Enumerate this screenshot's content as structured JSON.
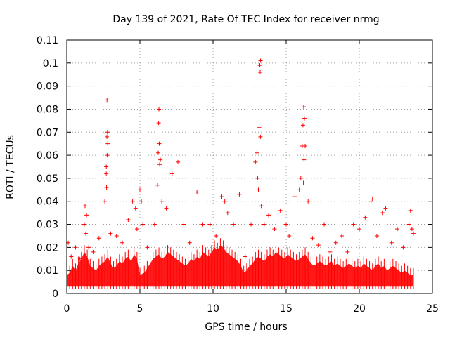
{
  "chart_data": {
    "type": "scatter",
    "title": "Day 139 of 2021, Rate Of TEC Index for receiver nrmg",
    "xlabel": "GPS time / hours",
    "ylabel": "ROTI / TECUs",
    "xlim": [
      0,
      25
    ],
    "ylim": [
      0,
      0.11
    ],
    "x_ticks": [
      0,
      5,
      10,
      15,
      20,
      25
    ],
    "x_tick_labels": [
      "0",
      "5",
      "10",
      "15",
      "20",
      "25"
    ],
    "y_ticks": [
      0,
      0.01,
      0.02,
      0.03,
      0.04,
      0.05,
      0.06,
      0.07,
      0.08,
      0.09,
      0.1,
      0.11
    ],
    "y_tick_labels": [
      "0",
      "0.01",
      "0.02",
      "0.03",
      "0.04",
      "0.05",
      "0.06",
      "0.07",
      "0.08",
      "0.09",
      "0.1",
      "0.11"
    ],
    "grid": true,
    "legend": "none",
    "marker": "plus",
    "color": "#ff0000",
    "series": [
      {
        "x": [
          0.1,
          0.3,
          0.6,
          0.9,
          1.2,
          1.25,
          1.3,
          1.35,
          1.5,
          1.8,
          2.2,
          2.6,
          2.7,
          2.75,
          2.78,
          2.8,
          2.7,
          2.72,
          2.76,
          2.74,
          3.0,
          3.4,
          3.8,
          4.2,
          4.5,
          4.7,
          4.8,
          5.0,
          5.1,
          5.2,
          5.5,
          6.0,
          6.2,
          6.25,
          6.3,
          6.28,
          6.32,
          6.35,
          6.4,
          6.5,
          6.8,
          7.2,
          7.6,
          8.0,
          8.4,
          8.9,
          9.3,
          9.8,
          10.2,
          10.6,
          10.8,
          11.0,
          11.4,
          11.8,
          12.2,
          12.6,
          12.9,
          13.0,
          13.05,
          13.1,
          13.15,
          13.2,
          13.25,
          13.22,
          13.24,
          13.3,
          13.5,
          13.8,
          14.2,
          14.6,
          15.0,
          15.2,
          15.6,
          15.9,
          16.0,
          16.1,
          16.15,
          16.2,
          16.25,
          16.3,
          16.22,
          16.18,
          16.5,
          16.8,
          17.2,
          17.6,
          18.0,
          18.4,
          18.8,
          19.2,
          19.6,
          20.0,
          20.4,
          20.8,
          20.9,
          21.2,
          21.6,
          21.8,
          22.2,
          22.6,
          23.0,
          23.4,
          23.5,
          23.6,
          23.7
        ],
        "y": [
          0.022,
          0.016,
          0.02,
          0.015,
          0.03,
          0.038,
          0.026,
          0.034,
          0.02,
          0.018,
          0.024,
          0.04,
          0.052,
          0.084,
          0.07,
          0.065,
          0.055,
          0.046,
          0.06,
          0.068,
          0.026,
          0.025,
          0.022,
          0.032,
          0.04,
          0.037,
          0.028,
          0.045,
          0.04,
          0.03,
          0.02,
          0.03,
          0.047,
          0.061,
          0.08,
          0.074,
          0.065,
          0.056,
          0.058,
          0.04,
          0.037,
          0.052,
          0.057,
          0.03,
          0.022,
          0.044,
          0.03,
          0.03,
          0.025,
          0.042,
          0.04,
          0.035,
          0.03,
          0.043,
          0.016,
          0.03,
          0.057,
          0.061,
          0.05,
          0.045,
          0.072,
          0.099,
          0.101,
          0.096,
          0.068,
          0.038,
          0.03,
          0.034,
          0.028,
          0.036,
          0.03,
          0.025,
          0.042,
          0.045,
          0.05,
          0.064,
          0.073,
          0.081,
          0.076,
          0.064,
          0.058,
          0.048,
          0.04,
          0.024,
          0.021,
          0.03,
          0.018,
          0.022,
          0.025,
          0.018,
          0.03,
          0.028,
          0.033,
          0.04,
          0.041,
          0.025,
          0.035,
          0.037,
          0.022,
          0.028,
          0.02,
          0.03,
          0.036,
          0.028,
          0.026
        ],
        "noise_floor": {
          "x": [
            0,
            0.2,
            0.4,
            0.6,
            0.8,
            1,
            1.2,
            1.4,
            1.6,
            1.8,
            2,
            2.2,
            2.4,
            2.6,
            2.8,
            3,
            3.2,
            3.4,
            3.6,
            3.8,
            4,
            4.2,
            4.4,
            4.6,
            4.8,
            5,
            5.3,
            5.5,
            5.7,
            5.9,
            6.1,
            6.3,
            6.5,
            6.7,
            6.9,
            7.1,
            7.3,
            7.5,
            7.7,
            7.9,
            8.1,
            8.3,
            8.5,
            8.7,
            8.9,
            9.1,
            9.3,
            9.5,
            9.7,
            9.9,
            10.1,
            10.3,
            10.5,
            10.7,
            10.9,
            11.1,
            11.3,
            11.5,
            11.7,
            11.9,
            12.1,
            12.3,
            12.5,
            12.7,
            12.9,
            13.1,
            13.3,
            13.5,
            13.7,
            13.9,
            14.1,
            14.3,
            14.5,
            14.7,
            14.9,
            15.1,
            15.3,
            15.5,
            15.7,
            15.9,
            16.1,
            16.3,
            16.5,
            16.7,
            16.9,
            17.1,
            17.3,
            17.5,
            17.7,
            17.9,
            18.1,
            18.3,
            18.5,
            18.7,
            18.9,
            19.1,
            19.3,
            19.5,
            19.7,
            19.9,
            20.1,
            20.3,
            20.5,
            20.7,
            20.9,
            21.1,
            21.3,
            21.5,
            21.7,
            21.9,
            22.1,
            22.3,
            22.5,
            22.7,
            22.9,
            23.1,
            23.3,
            23.5,
            23.7
          ],
          "y": [
            0.008,
            0.009,
            0.012,
            0.01,
            0.013,
            0.015,
            0.018,
            0.016,
            0.012,
            0.011,
            0.01,
            0.012,
            0.013,
            0.014,
            0.016,
            0.013,
            0.011,
            0.012,
            0.014,
            0.013,
            0.015,
            0.016,
            0.014,
            0.017,
            0.015,
            0.008,
            0.009,
            0.011,
            0.013,
            0.015,
            0.016,
            0.017,
            0.015,
            0.016,
            0.018,
            0.017,
            0.016,
            0.015,
            0.014,
            0.013,
            0.012,
            0.013,
            0.015,
            0.014,
            0.016,
            0.015,
            0.018,
            0.017,
            0.016,
            0.018,
            0.02,
            0.019,
            0.021,
            0.02,
            0.018,
            0.017,
            0.016,
            0.015,
            0.014,
            0.012,
            0.009,
            0.01,
            0.012,
            0.013,
            0.015,
            0.016,
            0.015,
            0.014,
            0.016,
            0.017,
            0.016,
            0.018,
            0.017,
            0.016,
            0.015,
            0.017,
            0.016,
            0.015,
            0.014,
            0.015,
            0.016,
            0.017,
            0.015,
            0.013,
            0.012,
            0.013,
            0.014,
            0.013,
            0.012,
            0.013,
            0.014,
            0.012,
            0.013,
            0.012,
            0.011,
            0.012,
            0.013,
            0.012,
            0.011,
            0.012,
            0.011,
            0.013,
            0.012,
            0.011,
            0.01,
            0.012,
            0.013,
            0.011,
            0.012,
            0.01,
            0.011,
            0.012,
            0.011,
            0.01,
            0.009,
            0.01,
            0.009,
            0.008,
            0.008
          ]
        }
      }
    ]
  }
}
